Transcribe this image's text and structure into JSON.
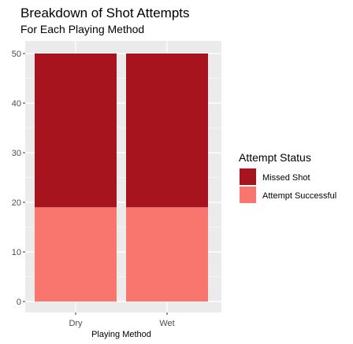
{
  "chart_data": {
    "type": "bar",
    "stacked": true,
    "title": "Breakdown of Shot Attempts",
    "subtitle": "For Each Playing Method",
    "xlabel": "Playing Method",
    "ylabel": "",
    "categories": [
      "Dry",
      "Wet"
    ],
    "ylim": [
      0,
      50
    ],
    "yticks": [
      0,
      10,
      20,
      30,
      40,
      50
    ],
    "grid": true,
    "legend": {
      "title": "Attempt Status",
      "position": "right"
    },
    "series": [
      {
        "name": "Attempt Successful",
        "values": [
          19,
          19
        ],
        "color": "#f8766d"
      },
      {
        "name": "Missed Shot",
        "values": [
          31,
          31
        ],
        "color": "#a7141e"
      }
    ],
    "legend_order": [
      "Missed Shot",
      "Attempt Successful"
    ],
    "panel_background": "#ebebeb",
    "grid_color": "#ffffff"
  }
}
